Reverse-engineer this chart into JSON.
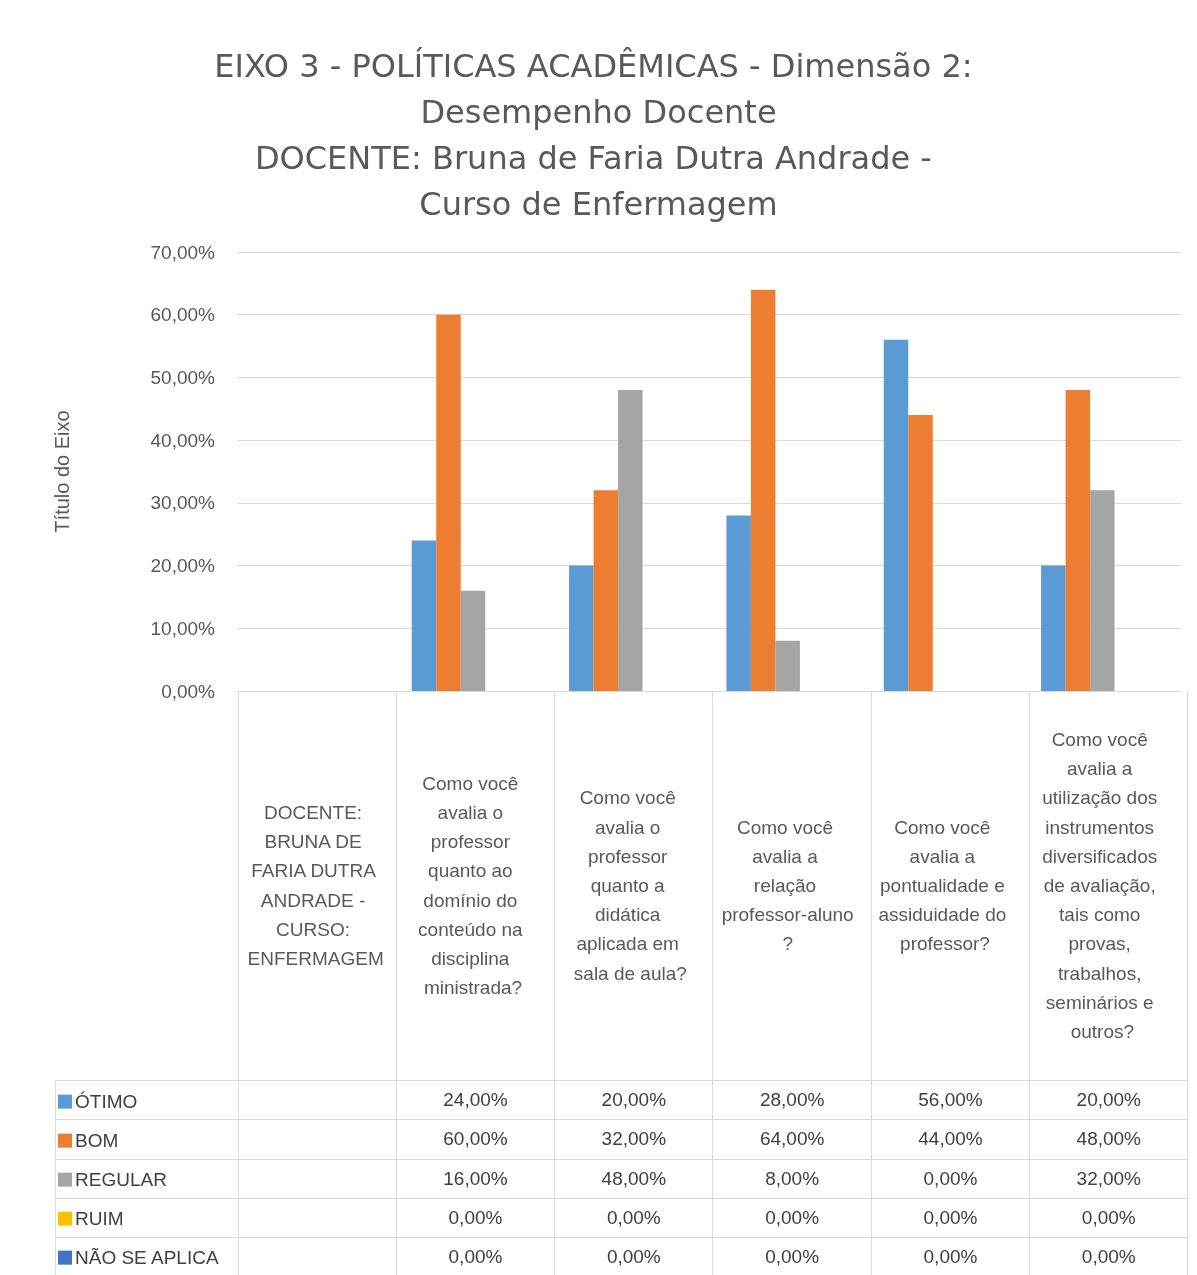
{
  "chart_data": {
    "type": "bar",
    "title": "EIXO 3 - POLÍTICAS ACADÊMICAS - Dimensão 2: Desempenho Docente",
    "subtitle": "DOCENTE: Bruna de Faria Dutra Andrade - Curso de Enfermagem",
    "ylabel": "Título do Eixo",
    "categories": [
      "DOCENTE: BRUNA DE FARIA DUTRA ANDRADE - CURSO: ENFERMAGEM",
      "Como você avalia o professor quanto ao domínio do conteúdo na disciplina ministrada?",
      "Como você avalia o professor quanto a didática aplicada em sala de aula?",
      "Como você avalia a relação professor-aluno?",
      "Como você avalia a pontualidade e assiduidade do professor?",
      "Como você avalia a utilização dos instrumentos diversificados de avaliação, tais como provas, trabalhos, seminários e outros?"
    ],
    "series": [
      {
        "name": "ÓTIMO",
        "color": "#5b9bd5",
        "values": [
          null,
          24,
          20,
          28,
          56,
          20
        ],
        "value_labels": [
          null,
          "24,00%",
          "20,00%",
          "28,00%",
          "56,00%",
          "20,00%"
        ]
      },
      {
        "name": "BOM",
        "color": "#ed7d31",
        "values": [
          null,
          60,
          32,
          64,
          44,
          48
        ],
        "value_labels": [
          null,
          "60,00%",
          "32,00%",
          "64,00%",
          "44,00%",
          "48,00%"
        ]
      },
      {
        "name": "REGULAR",
        "color": "#a5a5a5",
        "values": [
          null,
          16,
          48,
          8,
          0,
          32
        ],
        "value_labels": [
          null,
          "16,00%",
          "48,00%",
          "8,00%",
          "0,00%",
          "32,00%"
        ]
      },
      {
        "name": "RUIM",
        "color": "#ffc000",
        "values": [
          null,
          0,
          0,
          0,
          0,
          0
        ],
        "value_labels": [
          null,
          "0,00%",
          "0,00%",
          "0,00%",
          "0,00%",
          "0,00%"
        ]
      },
      {
        "name": "NÃO SE APLICA",
        "color": "#4472c4",
        "values": [
          null,
          0,
          0,
          0,
          0,
          0
        ],
        "value_labels": [
          null,
          "0,00%",
          "0,00%",
          "0,00%",
          "0,00%",
          "0,00%"
        ]
      }
    ],
    "ylim": [
      0,
      70
    ],
    "yticks": [
      {
        "value": 0,
        "label": "0,00%"
      },
      {
        "value": 10,
        "label": "10,00%"
      },
      {
        "value": 20,
        "label": "20,00%"
      },
      {
        "value": 30,
        "label": "30,00%"
      },
      {
        "value": 40,
        "label": "40,00%"
      },
      {
        "value": 50,
        "label": "50,00%"
      },
      {
        "value": 60,
        "label": "60,00%"
      },
      {
        "value": 70,
        "label": "70,00%"
      }
    ],
    "grid": "y",
    "legend": "bottom left"
  }
}
